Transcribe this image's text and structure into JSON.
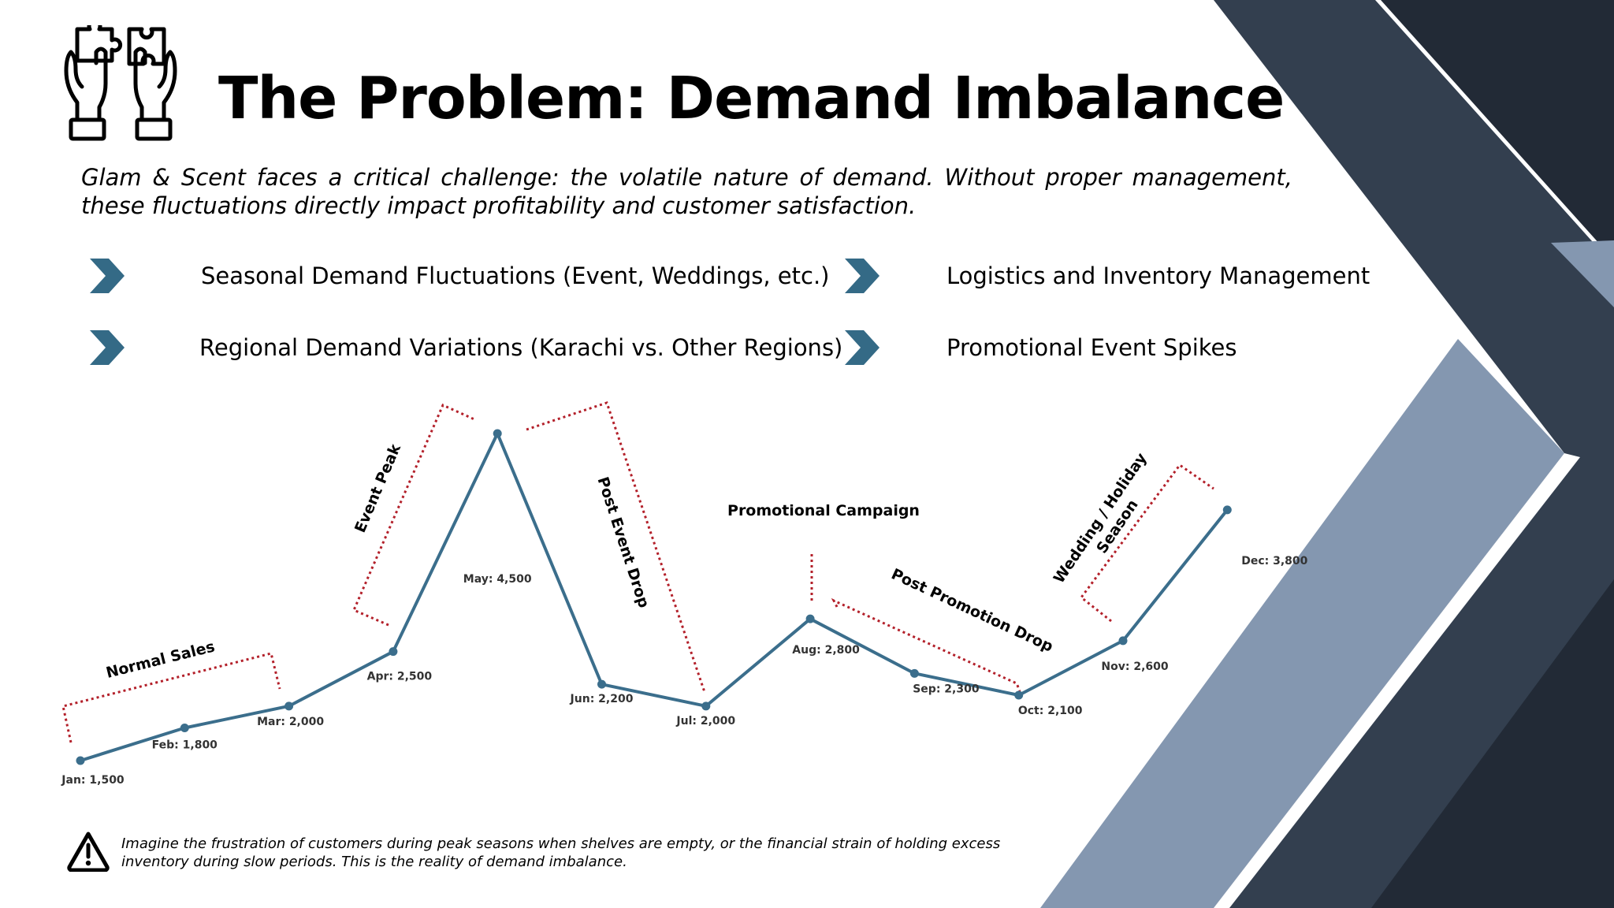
{
  "slide": {
    "title": "The Problem: Demand Imbalance",
    "intro": "Glam & Scent faces a critical challenge: the volatile nature of demand. Without proper management, these fluctuations directly impact profitability and customer satisfaction.",
    "bullets": [
      "Seasonal Demand Fluctuations (Event, Weddings, etc.)",
      "Logistics and Inventory Management",
      "Regional Demand Variations (Karachi vs. Other Regions)",
      "Promotional Event Spikes"
    ],
    "footnote": "Imagine the frustration of customers during peak seasons when shelves are empty, or the financial strain of holding excess inventory during slow periods. This is the reality of demand imbalance.",
    "icons": {
      "header": "puzzle-hands-icon",
      "bullet": "chevron-right-icon",
      "footnote": "warning-triangle-icon"
    },
    "colors": {
      "line": "#3b6e8c",
      "bracket": "#b3202a",
      "chevron": "#346a86",
      "deco_dark": "#333f4f",
      "deco_darker": "#222a36",
      "deco_light": "#8497b0"
    }
  },
  "chart_data": {
    "type": "line",
    "categories": [
      "Jan",
      "Feb",
      "Mar",
      "Apr",
      "May",
      "Jun",
      "Jul",
      "Aug",
      "Sep",
      "Oct",
      "Nov",
      "Dec"
    ],
    "values": [
      1500,
      1800,
      2000,
      2500,
      4500,
      2200,
      2000,
      2800,
      2300,
      2100,
      2600,
      3800
    ],
    "value_labels": [
      "1,500",
      "1,800",
      "2,000",
      "2,500",
      "4,500",
      "2,200",
      "2,000",
      "2,800",
      "2,300",
      "2,100",
      "2,600",
      "3,800"
    ],
    "title": "",
    "xlabel": "",
    "ylabel": "",
    "grid": false,
    "annotations": [
      {
        "text": "Normal Sales",
        "months": [
          "Jan",
          "Mar"
        ]
      },
      {
        "text": "Event Peak",
        "months": [
          "Apr",
          "May"
        ]
      },
      {
        "text": "Post Event Drop",
        "months": [
          "May",
          "Jul"
        ]
      },
      {
        "text": "Promotional Campaign",
        "months": [
          "Aug"
        ]
      },
      {
        "text": "Post Promotion Drop",
        "months": [
          "Aug",
          "Oct"
        ]
      },
      {
        "text": "Wedding / Holiday Season",
        "months": [
          "Nov",
          "Dec"
        ]
      }
    ]
  }
}
